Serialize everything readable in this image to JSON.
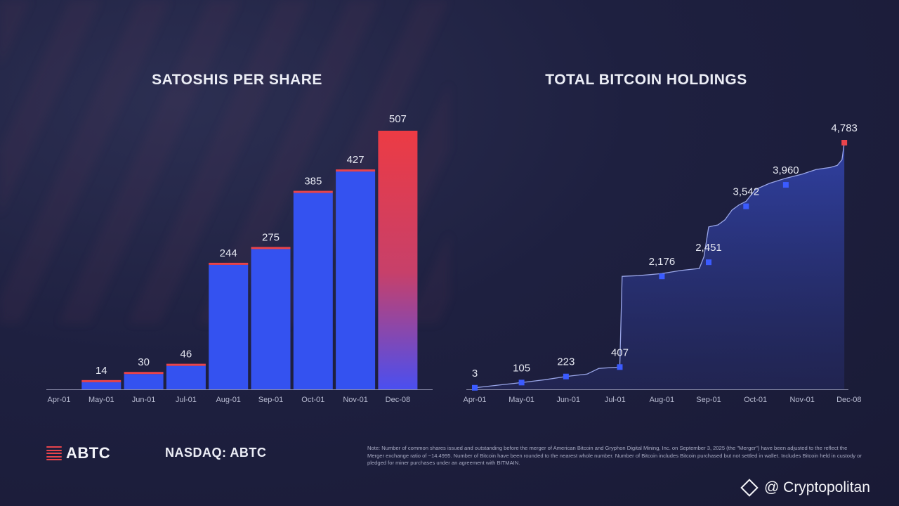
{
  "footer": {
    "logo_text": "ABTC",
    "ticker": "NASDAQ: ABTC",
    "note": "Note: Number of common shares issued and outstanding before the merger of American Bitcoin and Gryphon Digital Mining, Inc. on September 3, 2025 (the \"Merger\") have been adjusted to the reflect the Merger exchange ratio of ~14.4995. Number of Bitcoin have been rounded to the nearest whole number. Number of Bitcoin includes Bitcoin purchased but not settled in wallet. Includes Bitcoin held in custody or pledged for miner purchases under an agreement with BITMAIN."
  },
  "watermark": {
    "text": "@ Cryptopolitan"
  },
  "colors": {
    "bar": "#3452f0",
    "accent": "#e8444c",
    "area_top": "#2f3e9e",
    "marker": "#3b5bff"
  },
  "chart_data": [
    {
      "type": "bar",
      "title": "SATOSHIS PER SHARE",
      "categories": [
        "Apr-01",
        "May-01",
        "Jun-01",
        "Jul-01",
        "Aug-01",
        "Sep-01",
        "Oct-01",
        "Nov-01",
        "Dec-08"
      ],
      "values": [
        null,
        14,
        30,
        46,
        244,
        275,
        385,
        427,
        507
      ],
      "value_labels": [
        "",
        "14",
        "30",
        "46",
        "244",
        "275",
        "385",
        "427",
        "507"
      ],
      "xlabel": "",
      "ylabel": "",
      "ylim": [
        0,
        520
      ],
      "grid": false,
      "legend": "none"
    },
    {
      "type": "area",
      "title": "TOTAL BITCOIN HOLDINGS",
      "categories": [
        "Apr-01",
        "May-01",
        "Jun-01",
        "Jul-01",
        "Aug-01",
        "Sep-01",
        "Oct-01",
        "Nov-01",
        "Dec-08"
      ],
      "points": [
        {
          "x": 0.0,
          "y": 3,
          "label": "3"
        },
        {
          "x": 1.0,
          "y": 105,
          "label": "105"
        },
        {
          "x": 1.95,
          "y": 223,
          "label": "223"
        },
        {
          "x": 3.1,
          "y": 407,
          "label": "407"
        },
        {
          "x": 4.0,
          "y": 2176,
          "label": "2,176"
        },
        {
          "x": 5.0,
          "y": 2451,
          "label": "2,451"
        },
        {
          "x": 5.8,
          "y": 3542,
          "label": "3,542"
        },
        {
          "x": 6.65,
          "y": 3960,
          "label": "3,960"
        },
        {
          "x": 7.9,
          "y": 4783,
          "label": "4,783"
        }
      ],
      "line": [
        [
          0,
          3
        ],
        [
          0.5,
          55
        ],
        [
          1.0,
          105
        ],
        [
          1.5,
          160
        ],
        [
          1.95,
          223
        ],
        [
          2.4,
          270
        ],
        [
          2.65,
          380
        ],
        [
          3.1,
          407
        ],
        [
          3.15,
          2176
        ],
        [
          3.5,
          2190
        ],
        [
          4.0,
          2230
        ],
        [
          4.4,
          2290
        ],
        [
          4.8,
          2330
        ],
        [
          4.9,
          2560
        ],
        [
          5.0,
          3140
        ],
        [
          5.2,
          3180
        ],
        [
          5.35,
          3280
        ],
        [
          5.5,
          3470
        ],
        [
          5.65,
          3570
        ],
        [
          5.8,
          3640
        ],
        [
          6.0,
          3870
        ],
        [
          6.3,
          3990
        ],
        [
          6.65,
          4090
        ],
        [
          7.0,
          4170
        ],
        [
          7.3,
          4260
        ],
        [
          7.6,
          4300
        ],
        [
          7.75,
          4340
        ],
        [
          7.85,
          4450
        ],
        [
          7.9,
          4783
        ]
      ],
      "xlabel": "",
      "ylabel": "",
      "ylim": [
        0,
        5000
      ],
      "grid": false,
      "legend": "none"
    }
  ]
}
